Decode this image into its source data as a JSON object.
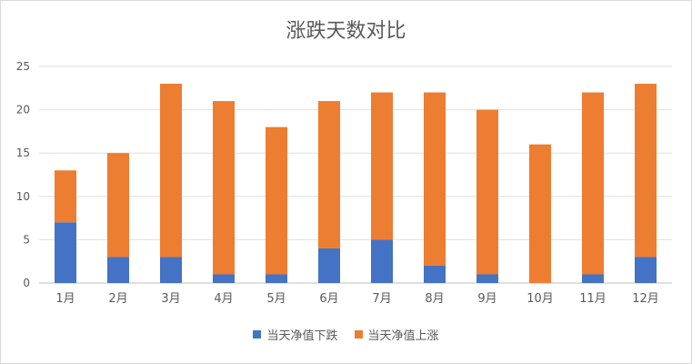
{
  "chart_data": {
    "type": "bar",
    "stacked": true,
    "title": "涨跌天数对比",
    "xlabel": "",
    "ylabel": "",
    "categories": [
      "1月",
      "2月",
      "3月",
      "4月",
      "5月",
      "6月",
      "7月",
      "8月",
      "9月",
      "10月",
      "11月",
      "12月"
    ],
    "series": [
      {
        "name": "当天净值下跌",
        "color": "#4472c4",
        "values": [
          7,
          3,
          3,
          1,
          1,
          4,
          5,
          2,
          1,
          0,
          1,
          3
        ]
      },
      {
        "name": "当天净值上涨",
        "color": "#ed7d31",
        "values": [
          6,
          12,
          20,
          20,
          17,
          17,
          17,
          20,
          19,
          16,
          21,
          20
        ]
      }
    ],
    "ylim": [
      0,
      25
    ],
    "yticks": [
      0,
      5,
      10,
      15,
      20,
      25
    ],
    "grid": true,
    "legend_position": "bottom"
  }
}
